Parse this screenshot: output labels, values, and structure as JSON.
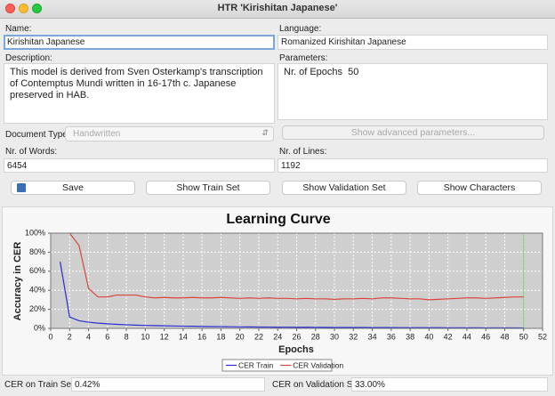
{
  "window": {
    "title": "HTR 'Kirishitan Japanese'"
  },
  "form": {
    "name_label": "Name:",
    "name": "Kirishitan Japanese",
    "language_label": "Language:",
    "language": "Romanized Kirishitan Japanese",
    "description_label": "Description:",
    "description": "This model is derived from Sven Osterkamp's transcription of Contemptus Mundi written in 16-17th c. Japanese preserved in HAB.",
    "parameters_label": "Parameters:",
    "parameters": "Nr. of Epochs  50",
    "document_type_label": "Document Type:",
    "document_type": "Handwritten",
    "advanced_button": "Show advanced parameters...",
    "words_label": "Nr. of Words:",
    "words": "6454",
    "lines_label": "Nr. of Lines:",
    "lines": "1192",
    "buttons": [
      "Save",
      "Show Train Set",
      "Show Validation Set",
      "Show Characters"
    ]
  },
  "chart_data": {
    "type": "line",
    "title": "Learning Curve",
    "x_label": "Epochs",
    "y_label": "Accuracy in CER",
    "x": [
      1,
      2,
      3,
      4,
      5,
      6,
      7,
      8,
      9,
      10,
      11,
      12,
      13,
      14,
      15,
      16,
      17,
      18,
      19,
      20,
      21,
      22,
      23,
      24,
      25,
      26,
      27,
      28,
      29,
      30,
      31,
      32,
      33,
      34,
      35,
      36,
      37,
      38,
      39,
      40,
      41,
      42,
      43,
      44,
      45,
      46,
      47,
      48,
      49,
      50
    ],
    "series": [
      {
        "name": "CER Train",
        "color": "#2b2bd4",
        "values": [
          70,
          12,
          8,
          6.5,
          5.5,
          4.8,
          4.2,
          3.8,
          3.4,
          3.1,
          2.9,
          2.7,
          2.5,
          2.3,
          2.2,
          2.0,
          1.9,
          1.8,
          1.7,
          1.6,
          1.5,
          1.4,
          1.35,
          1.3,
          1.25,
          1.2,
          1.15,
          1.1,
          1.05,
          1.0,
          0.97,
          0.94,
          0.9,
          0.87,
          0.84,
          0.8,
          0.78,
          0.75,
          0.72,
          0.7,
          0.67,
          0.64,
          0.62,
          0.6,
          0.57,
          0.54,
          0.52,
          0.49,
          0.46,
          0.42
        ]
      },
      {
        "name": "CER Validation",
        "color": "#d9463a",
        "values": [
          null,
          100,
          87,
          42,
          33,
          33,
          35,
          35,
          35,
          33,
          32,
          32.5,
          32,
          32,
          32.5,
          32,
          32,
          32.5,
          32,
          31.5,
          32,
          31.5,
          32,
          31.5,
          31.5,
          31,
          31.5,
          31,
          31,
          30.5,
          31,
          31,
          31.5,
          31,
          32,
          32,
          31.5,
          31,
          31,
          30,
          30.5,
          31,
          31.5,
          32,
          32,
          31.5,
          32,
          32.5,
          33,
          33
        ]
      }
    ],
    "xlim": [
      0,
      52
    ],
    "xticks": [
      0,
      2,
      4,
      6,
      8,
      10,
      12,
      14,
      16,
      18,
      20,
      22,
      24,
      26,
      28,
      30,
      32,
      34,
      36,
      38,
      40,
      42,
      44,
      46,
      48,
      50,
      52
    ],
    "ylim": [
      0,
      100
    ],
    "yticks": [
      {
        "value": 0,
        "label": "0%"
      },
      {
        "value": 20,
        "label": "20%"
      },
      {
        "value": 40,
        "label": "40%"
      },
      {
        "value": 60,
        "label": "60%"
      },
      {
        "value": 80,
        "label": "80%"
      },
      {
        "value": 100,
        "label": "100%"
      }
    ],
    "grid": true,
    "legend": "bottom",
    "vline": 50,
    "vline_color": "#6fd86f"
  },
  "results": {
    "train_label": "CER on Train Set:",
    "train": "0.42%",
    "validation_label": "CER on Validation Set:",
    "validation": "33.00%"
  }
}
